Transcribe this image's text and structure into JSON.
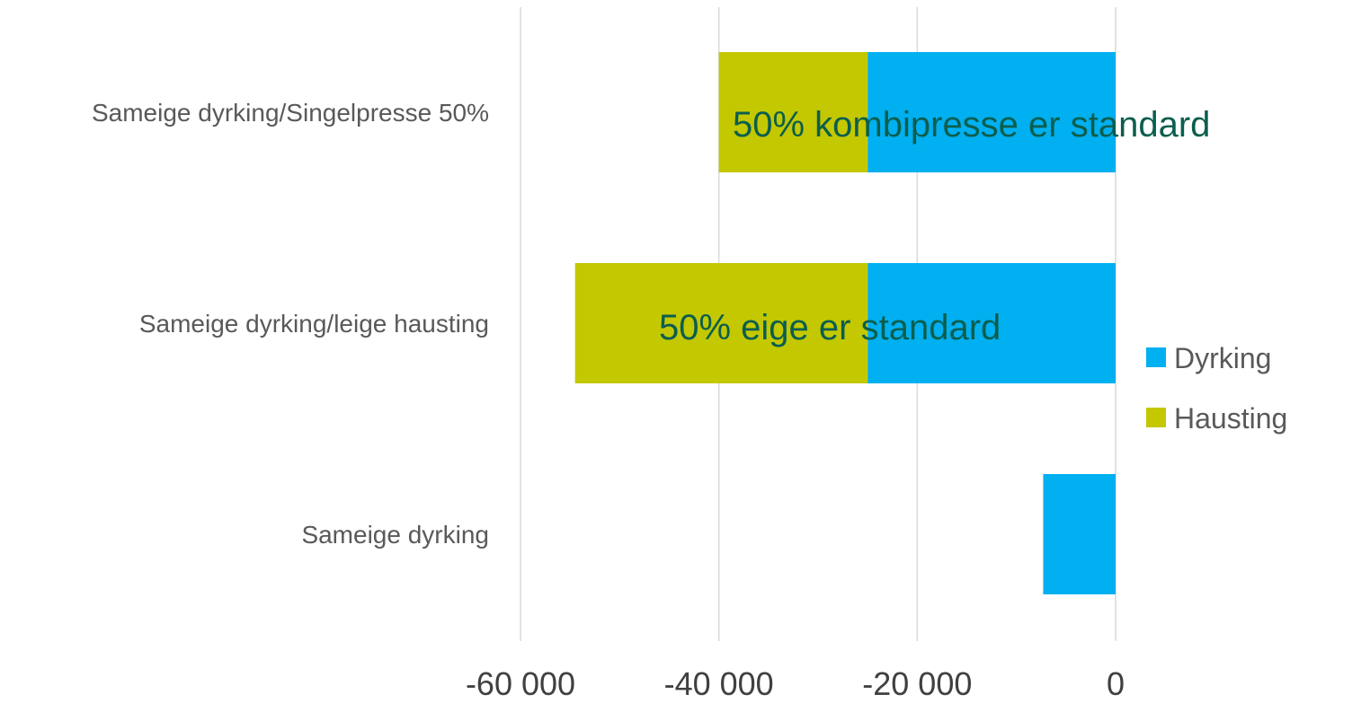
{
  "chart_data": {
    "type": "bar",
    "orientation": "horizontal",
    "stacked": true,
    "categories": [
      "Sameige dyrking/Singelpresse 50%",
      "Sameige dyrking/leige hausting",
      "Sameige dyrking"
    ],
    "series": [
      {
        "name": "Dyrking",
        "color": "#00b0f0",
        "values": [
          -25000,
          -25000,
          -7300
        ]
      },
      {
        "name": "Hausting",
        "color": "#c4c800",
        "values": [
          -15000,
          -29500,
          0
        ]
      }
    ],
    "xlim": [
      -60000,
      0
    ],
    "xticks": [
      -60000,
      -40000,
      -20000,
      0
    ],
    "xtick_labels": [
      "-60 000",
      "-40 000",
      "-20 000",
      "0"
    ],
    "gridlines": true,
    "legend": {
      "placement": "right",
      "entries": [
        "Dyrking",
        "Hausting"
      ]
    },
    "annotations": [
      {
        "text": "50% kombipresse er standard",
        "category": "Sameige dyrking/Singelpresse 50%"
      },
      {
        "text": "50% eige er standard",
        "category": "Sameige dyrking/leige hausting"
      }
    ]
  }
}
